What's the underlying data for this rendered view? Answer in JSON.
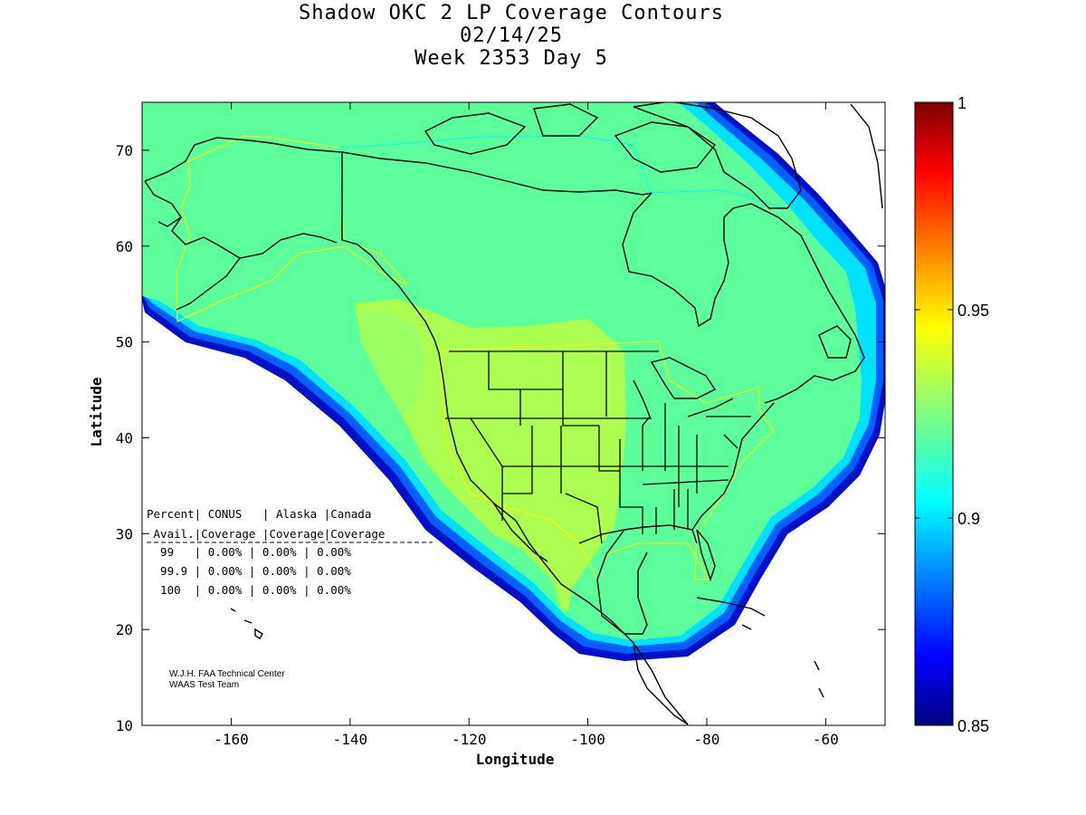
{
  "title": {
    "line1": "Shadow OKC 2 LP Coverage Contours",
    "line2": "02/14/25",
    "line3": "Week 2353 Day 5"
  },
  "axes": {
    "xlabel": "Longitude",
    "ylabel": "Latitude",
    "xticks": [
      "-160",
      "-140",
      "-120",
      "-100",
      "-80",
      "-60"
    ],
    "yticks": [
      "70",
      "60",
      "50",
      "40",
      "30",
      "20",
      "10"
    ],
    "xlim": [
      -175,
      -50
    ],
    "ylim": [
      10,
      75
    ]
  },
  "colorbar": {
    "ticks": [
      "1",
      "0.95",
      "0.9",
      "0.85"
    ],
    "range": [
      0.85,
      1.0
    ]
  },
  "colors": {
    "region_fill": "#5dff9a",
    "conus_fill": "#aaff50",
    "edge_cyan": "#00e0ff",
    "edge_blue": "#0060ff",
    "edge_darkblue": "#0010c8",
    "boundary_yellow": "#ffff00",
    "boundary_cyan": "#00ffff",
    "coast": "#000000"
  },
  "table": {
    "header1": "Percent| CONUS   | Alaska |Canada",
    "header2": " Avail.|Coverage |Coverage|Coverage",
    "rows": [
      "  99   | 0.00% | 0.00% | 0.00%",
      "  99.9 | 0.00% | 0.00% | 0.00%",
      "  100  | 0.00% | 0.00% | 0.00%"
    ]
  },
  "credit": {
    "line1": "W.J.H. FAA Technical Center",
    "line2": "WAAS Test Team"
  }
}
